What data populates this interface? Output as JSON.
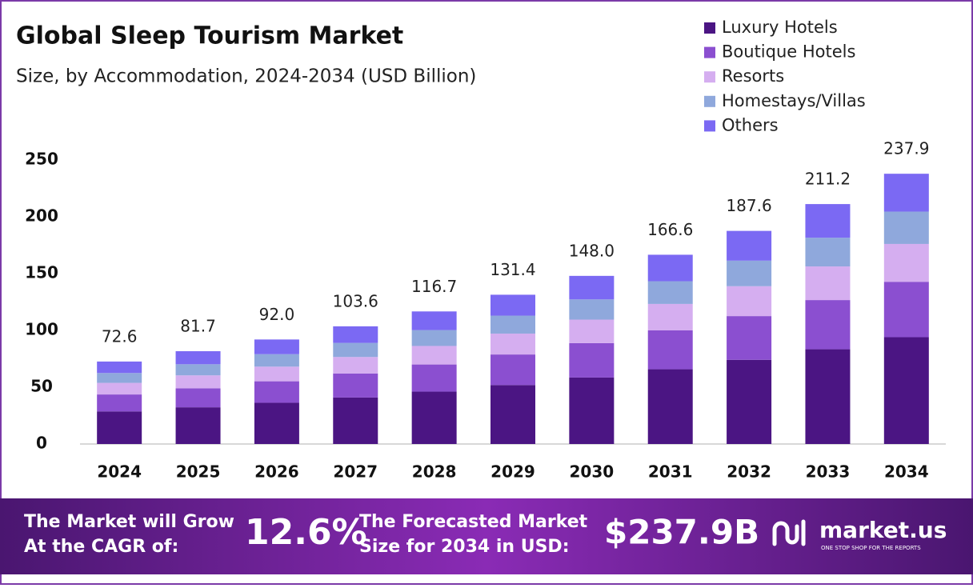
{
  "chart_data": {
    "type": "stacked_bar",
    "title": "Global Sleep Tourism Market",
    "subtitle": "Size, by Accommodation, 2024-2034 (USD Billion)",
    "categories": [
      "2024",
      "2025",
      "2026",
      "2027",
      "2028",
      "2029",
      "2030",
      "2031",
      "2032",
      "2033",
      "2034"
    ],
    "series": [
      {
        "name": "Luxury Hotels",
        "color": "#4b1583",
        "values": [
          28.7,
          32.3,
          36.3,
          40.9,
          46.1,
          51.9,
          58.5,
          65.8,
          74.1,
          83.4,
          94.0
        ]
      },
      {
        "name": "Boutique Hotels",
        "color": "#8b4fd0",
        "values": [
          14.9,
          16.7,
          18.9,
          21.2,
          23.9,
          26.9,
          30.3,
          34.2,
          38.5,
          43.3,
          48.8
        ]
      },
      {
        "name": "Resorts",
        "color": "#d5aef0",
        "values": [
          10.2,
          11.4,
          12.9,
          14.5,
          16.3,
          18.4,
          20.7,
          23.3,
          26.3,
          29.6,
          33.3
        ]
      },
      {
        "name": "Homestays/Villas",
        "color": "#8fa8dc",
        "values": [
          8.7,
          9.8,
          11.0,
          12.4,
          14.0,
          15.8,
          17.8,
          20.0,
          22.5,
          25.3,
          28.5
        ]
      },
      {
        "name": "Others",
        "color": "#7b69f3",
        "values": [
          10.1,
          11.5,
          12.9,
          14.6,
          16.4,
          18.4,
          20.7,
          23.3,
          26.2,
          29.6,
          33.3
        ]
      }
    ],
    "totals": [
      72.6,
      81.7,
      92.0,
      103.6,
      116.7,
      131.4,
      148.0,
      166.6,
      187.6,
      211.2,
      237.9
    ],
    "total_labels": [
      "72.6",
      "81.7",
      "92.0",
      "103.6",
      "116.7",
      "131.4",
      "148.0",
      "166.6",
      "187.6",
      "211.2",
      "237.9"
    ],
    "ylim": [
      0,
      250
    ],
    "yticks": [
      0,
      50,
      100,
      150,
      200,
      250
    ],
    "grid": false,
    "legend": "top-right"
  },
  "footer": {
    "cagr_label": [
      "The Market will Grow",
      "At the CAGR of:"
    ],
    "cagr": "12.6%",
    "forecast_label": [
      "The Forecasted Market",
      "Size for 2034 in USD:"
    ],
    "forecast": "$237.9B",
    "brand": "market.us",
    "tagline": "ONE STOP SHOP FOR THE REPORTS"
  }
}
